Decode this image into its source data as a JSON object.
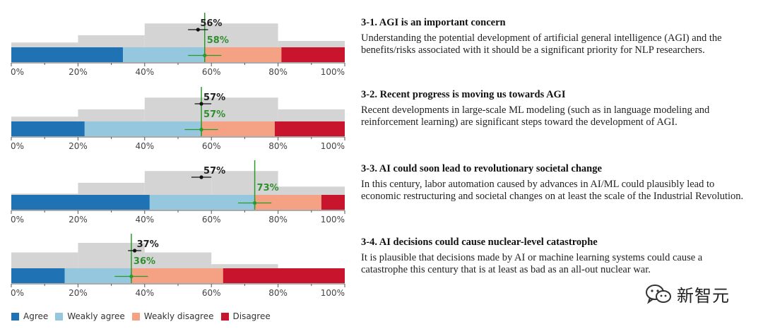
{
  "colors": {
    "agree": "#1f73b5",
    "weakly_agree": "#95c8de",
    "weakly_disagree": "#f4a283",
    "disagree": "#c8142d",
    "histogram": "#d4d4d4",
    "median_line": "#2a9a2a",
    "actual_label": "#2f8f2f",
    "prediction": "#111111"
  },
  "legend": [
    {
      "key": "agree",
      "label": "Agree"
    },
    {
      "key": "weakly_agree",
      "label": "Weakly agree"
    },
    {
      "key": "weakly_disagree",
      "label": "Weakly disagree"
    },
    {
      "key": "disagree",
      "label": "Disagree"
    }
  ],
  "chart_data": [
    {
      "type": "stacked-bar-with-histogram",
      "id": "3-1",
      "title": "3-1. AGI is an important concern",
      "description": "Understanding the potential development of artificial general intelligence (AGI) and the benefits/risks associated with it should be a significant priority for NLP researchers.",
      "segments": {
        "agree": 33.5,
        "weakly_agree": 24.5,
        "weakly_disagree": 23.0,
        "disagree": 19.0
      },
      "actual": {
        "value": 58,
        "label": "58%",
        "ci": [
          53,
          63
        ]
      },
      "predicted": {
        "value": 56,
        "label": "56%",
        "ci": [
          53,
          59
        ]
      },
      "histogram": {
        "bins": [
          0,
          20,
          40,
          60,
          80,
          100
        ],
        "heights": [
          0.15,
          0.38,
          0.75,
          0.75,
          0.2
        ]
      },
      "ticks": [
        "0%",
        "20%",
        "40%",
        "60%",
        "80%",
        "100%"
      ],
      "xlim": [
        0,
        100
      ]
    },
    {
      "type": "stacked-bar-with-histogram",
      "id": "3-2",
      "title": "3-2. Recent progress is moving us towards AGI",
      "description": "Recent developments in large-scale ML modeling (such as in language modeling and reinforcement learning) are significant steps toward the development of AGI.",
      "segments": {
        "agree": 22.0,
        "weakly_agree": 35.0,
        "weakly_disagree": 22.0,
        "disagree": 21.0
      },
      "actual": {
        "value": 57,
        "label": "57%",
        "ci": [
          52,
          62
        ]
      },
      "predicted": {
        "value": 57,
        "label": "57%",
        "ci": [
          55,
          60
        ]
      },
      "histogram": {
        "bins": [
          0,
          20,
          40,
          60,
          80,
          100
        ],
        "heights": [
          0.15,
          0.38,
          0.75,
          0.75,
          0.38
        ]
      },
      "ticks": [
        "0%",
        "20%",
        "40%",
        "60%",
        "80%",
        "100%"
      ],
      "xlim": [
        0,
        100
      ]
    },
    {
      "type": "stacked-bar-with-histogram",
      "id": "3-3",
      "title": "3-3. AI could soon lead to revolutionary societal change",
      "description": "In this century, labor automation caused by advances in AI/ML could plausibly lead to economic restructuring and societal changes on at least the scale of the Industrial Revolution.",
      "segments": {
        "agree": 41.5,
        "weakly_agree": 31.5,
        "weakly_disagree": 20.0,
        "disagree": 7.0
      },
      "actual": {
        "value": 73,
        "label": "73%",
        "ci": [
          68,
          78
        ]
      },
      "predicted": {
        "value": 57,
        "label": "57%",
        "ci": [
          54,
          60
        ]
      },
      "histogram": {
        "bins": [
          0,
          20,
          40,
          60,
          80,
          100
        ],
        "heights": [
          0.04,
          0.38,
          0.75,
          0.75,
          0.26
        ]
      },
      "ticks": [
        "0%",
        "20%",
        "40%",
        "60%",
        "80%",
        "100%"
      ],
      "xlim": [
        0,
        100
      ]
    },
    {
      "type": "stacked-bar-with-histogram",
      "id": "3-4",
      "title": "3-4. AI decisions could cause nuclear-level catastrophe",
      "description": "It is plausible that decisions made by AI or machine learning systems could cause a catastrophe this century that is at least as bad as an all-out nuclear war.",
      "segments": {
        "agree": 16.0,
        "weakly_agree": 20.0,
        "weakly_disagree": 27.5,
        "disagree": 36.5
      },
      "actual": {
        "value": 36,
        "label": "36%",
        "ci": [
          31,
          41
        ]
      },
      "predicted": {
        "value": 37,
        "label": "37%",
        "ci": [
          35,
          39
        ]
      },
      "histogram": {
        "bins": [
          0,
          20,
          40,
          60,
          80,
          100
        ],
        "heights": [
          0.5,
          0.8,
          0.5,
          0.13,
          0.0
        ]
      },
      "ticks": [
        "0%",
        "20%",
        "40%",
        "60%",
        "80%",
        "100%"
      ],
      "xlim": [
        0,
        100
      ]
    }
  ],
  "watermark": {
    "text": "新智元",
    "icon": "wechat-icon"
  }
}
